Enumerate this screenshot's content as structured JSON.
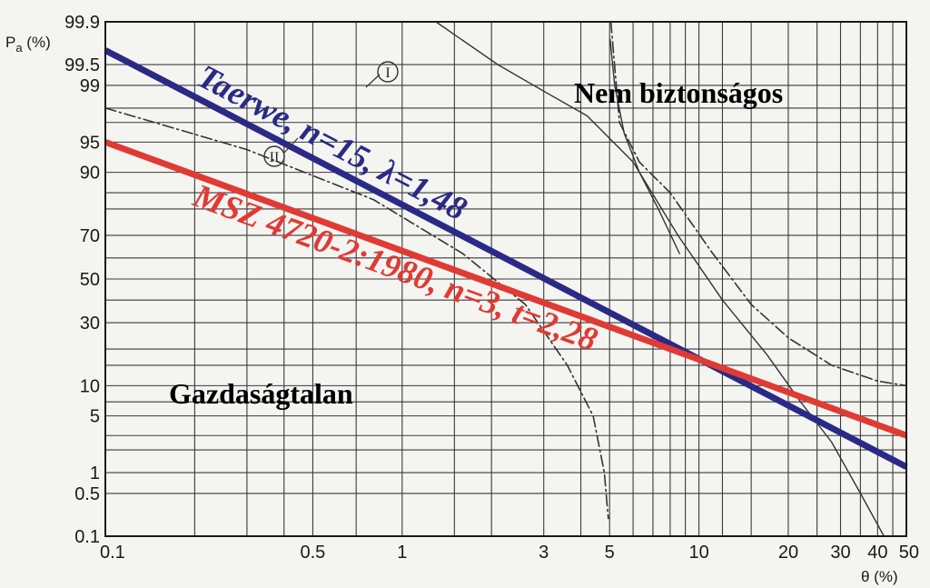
{
  "chart_data": {
    "type": "line",
    "x_scale": "log",
    "y_scale": "probability",
    "xlabel": "θ (%)",
    "ylabel": {
      "main": "P",
      "sub": "a",
      "unit": " (%)"
    },
    "x_ticks": [
      {
        "v": 0.1,
        "label": "0.1"
      },
      {
        "v": 0.5,
        "label": "0.5"
      },
      {
        "v": 1,
        "label": "1"
      },
      {
        "v": 3,
        "label": "3"
      },
      {
        "v": 5,
        "label": "5"
      },
      {
        "v": 10,
        "label": "10"
      },
      {
        "v": 20,
        "label": "20"
      },
      {
        "v": 30,
        "label": "30"
      },
      {
        "v": 40,
        "label": "40"
      },
      {
        "v": 50,
        "label": "50"
      }
    ],
    "y_ticks": [
      {
        "v": 0.1,
        "label": "0.1"
      },
      {
        "v": 0.5,
        "label": "0.5"
      },
      {
        "v": 1,
        "label": "1"
      },
      {
        "v": 5,
        "label": "5"
      },
      {
        "v": 10,
        "label": "10"
      },
      {
        "v": 30,
        "label": "30"
      },
      {
        "v": 50,
        "label": "50"
      },
      {
        "v": 70,
        "label": "70"
      },
      {
        "v": 90,
        "label": "90"
      },
      {
        "v": 95,
        "label": "95"
      },
      {
        "v": 99,
        "label": "99"
      },
      {
        "v": 99.5,
        "label": "99.5"
      },
      {
        "v": 99.9,
        "label": "99.9"
      }
    ],
    "x_grid": [
      0.1,
      0.2,
      0.3,
      0.4,
      0.5,
      0.7,
      1,
      1.5,
      2,
      3,
      4,
      5,
      6,
      7,
      8,
      9,
      10,
      12,
      15,
      20,
      25,
      30,
      35,
      40,
      45,
      50
    ],
    "y_grid": [
      0.1,
      0.5,
      1,
      2,
      3,
      5,
      7,
      10,
      15,
      20,
      30,
      40,
      50,
      60,
      70,
      80,
      85,
      90,
      95,
      97,
      98,
      99,
      99.5,
      99.9
    ],
    "series": [
      {
        "name": "Taerwe, n=15, λ=1,48",
        "color": "#2a2a86",
        "style": "solid",
        "x": [
          0.1,
          50
        ],
        "y": [
          99.7,
          1.2
        ]
      },
      {
        "name": "MSZ 4720-2:1980, n=3, t=2,28",
        "color": "#e03a34",
        "style": "solid",
        "x": [
          0.1,
          50
        ],
        "y": [
          95,
          3
        ]
      },
      {
        "name": "I",
        "color": "#333333",
        "style": "thin",
        "x": [
          1.3,
          2.1,
          3.0,
          4.2,
          6.0,
          8.5,
          12,
          17,
          22,
          28,
          35,
          42
        ],
        "y": [
          99.9,
          99.5,
          98.8,
          97.5,
          92,
          70,
          40,
          18,
          7,
          2.5,
          0.5,
          0.1
        ]
      },
      {
        "name": "I-branch",
        "color": "#333333",
        "style": "thin",
        "x": [
          5.02,
          5.2,
          5.6,
          6.3,
          7.3,
          8.6
        ],
        "y": [
          99.8,
          99.0,
          96.0,
          90,
          80,
          62
        ]
      },
      {
        "name": "II",
        "color": "#333333",
        "style": "dashdot",
        "x": [
          0.1,
          0.3,
          0.8,
          1.6,
          2.6,
          3.6,
          4.4,
          4.8,
          4.95
        ],
        "y": [
          98,
          94,
          83,
          62,
          38,
          15,
          5,
          1,
          0.2
        ]
      },
      {
        "name": "II-branch",
        "color": "#333333",
        "style": "dashdot",
        "x": [
          5.05,
          5.4,
          6.3,
          8,
          11,
          15,
          20,
          28,
          40,
          50
        ],
        "y": [
          99.9,
          97,
          92,
          85,
          63,
          38,
          24,
          15,
          11,
          10
        ]
      }
    ],
    "annotations": {
      "top_right": "Nem biztonságos",
      "bottom_left": "Gazdaságtalan",
      "curve_I": "I",
      "curve_II": "II"
    }
  }
}
